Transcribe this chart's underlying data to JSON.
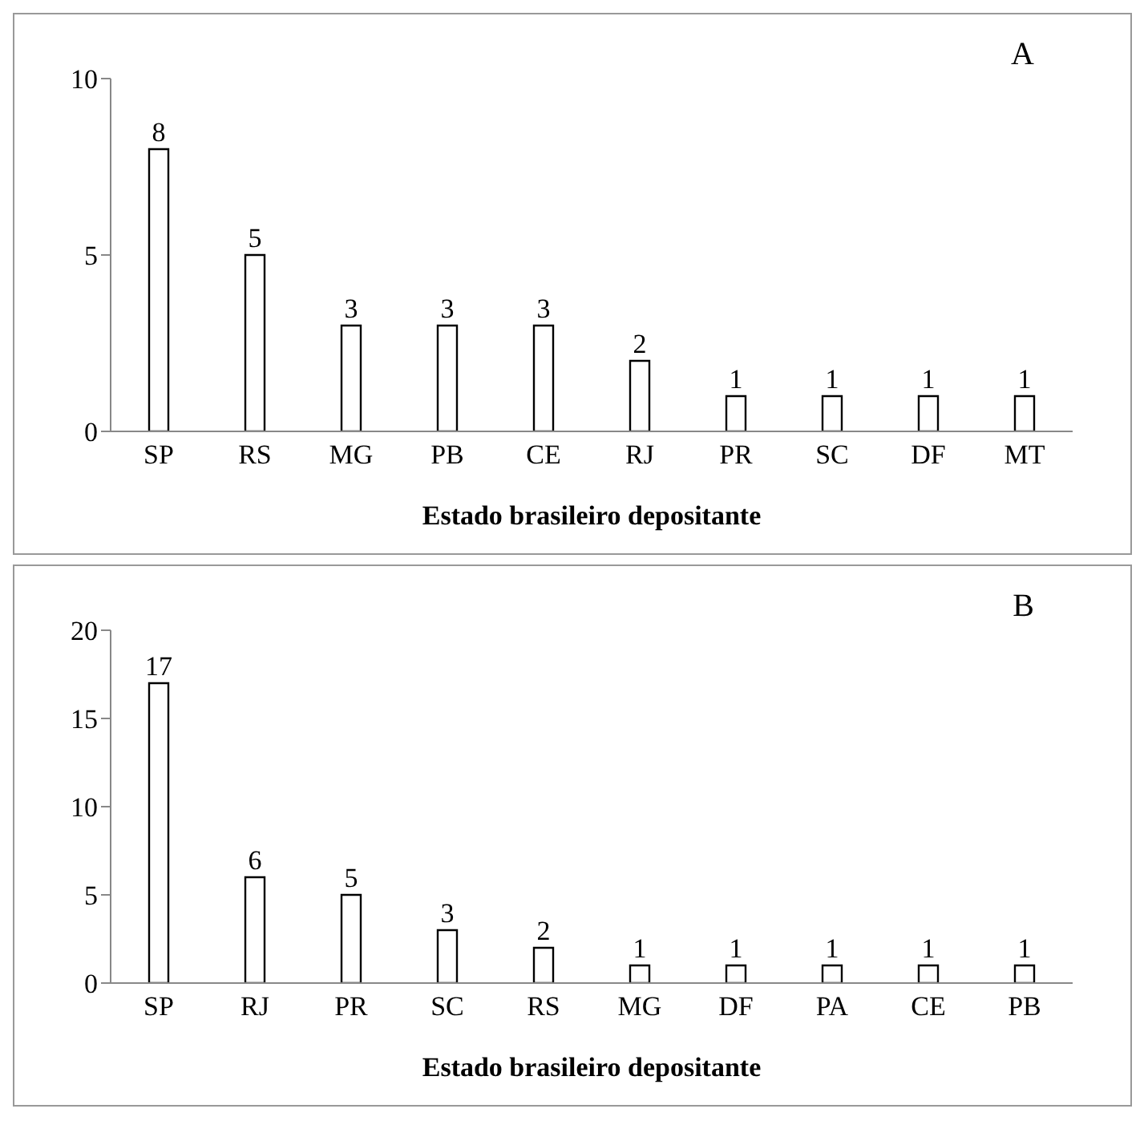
{
  "chart_data": [
    {
      "type": "bar",
      "categories": [
        "SP",
        "RS",
        "MG",
        "PB",
        "CE",
        "RJ",
        "PR",
        "SC",
        "DF",
        "MT"
      ],
      "values": [
        8,
        5,
        3,
        3,
        3,
        2,
        1,
        1,
        1,
        1
      ],
      "color": "#ffffff",
      "ylim": [
        0,
        10
      ],
      "yticks": [
        0,
        5,
        10
      ],
      "grid": false,
      "data_labels": true,
      "xlabel": "Estado brasileiro depositante",
      "annotations": [
        "A"
      ]
    },
    {
      "type": "bar",
      "categories": [
        "SP",
        "RJ",
        "PR",
        "SC",
        "RS",
        "MG",
        "DF",
        "PA",
        "CE",
        "PB"
      ],
      "values": [
        17,
        6,
        5,
        3,
        2,
        1,
        1,
        1,
        1,
        1
      ],
      "color": "#ffffff",
      "ylim": [
        0,
        20
      ],
      "yticks": [
        0,
        5,
        10,
        15,
        20
      ],
      "grid": false,
      "data_labels": true,
      "xlabel": "Estado brasileiro depositante",
      "annotations": [
        "B"
      ]
    }
  ]
}
